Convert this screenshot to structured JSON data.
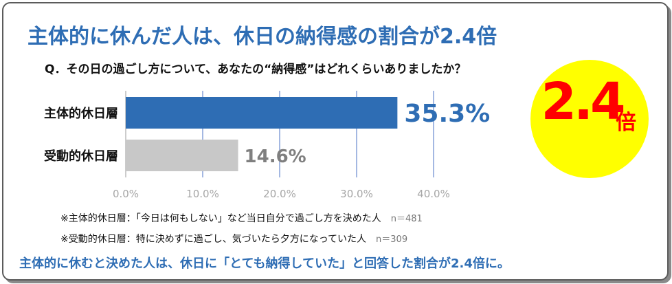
{
  "title": "主体的に休んだ人は、休日の納得感の割合が2.4倍",
  "question": "Q．その日の過ごし方について、あなたの“納得感”はどれくらいありましたか？",
  "badge": {
    "value": "2.4",
    "unit": "倍",
    "bg_color": "#ffff00",
    "text_color": "#ff0000"
  },
  "notes": [
    {
      "text": "※主体的休日層：「今日は何もしない」など当日自分で過ごし方を決めた人",
      "n": "n＝481"
    },
    {
      "text": "※受動的休日層：特に決めずに過ごし、気づいたら夕方になっていた人",
      "n": "n＝309"
    }
  ],
  "footer": "主体的に休むと決めた人は、休日に「とても納得していた」と回答した割合が2.4倍に。",
  "chart_data": {
    "type": "bar",
    "orientation": "horizontal",
    "categories": [
      "主体的休日層",
      "受動的休日層"
    ],
    "values": [
      35.3,
      14.6
    ],
    "value_labels": [
      "35.3%",
      "14.6%"
    ],
    "colors": [
      "#2e6db4",
      "#c8c8c8"
    ],
    "label_colors": [
      "#2e6db4",
      "#7f7f7f"
    ],
    "xlim": [
      0,
      40
    ],
    "ticks": [
      0,
      10,
      20,
      30,
      40
    ],
    "tick_labels": [
      "0.0%",
      "10.0%",
      "20.0%",
      "30.0%",
      "40.0%"
    ],
    "grid": true,
    "title": "",
    "xlabel": "",
    "ylabel": ""
  }
}
